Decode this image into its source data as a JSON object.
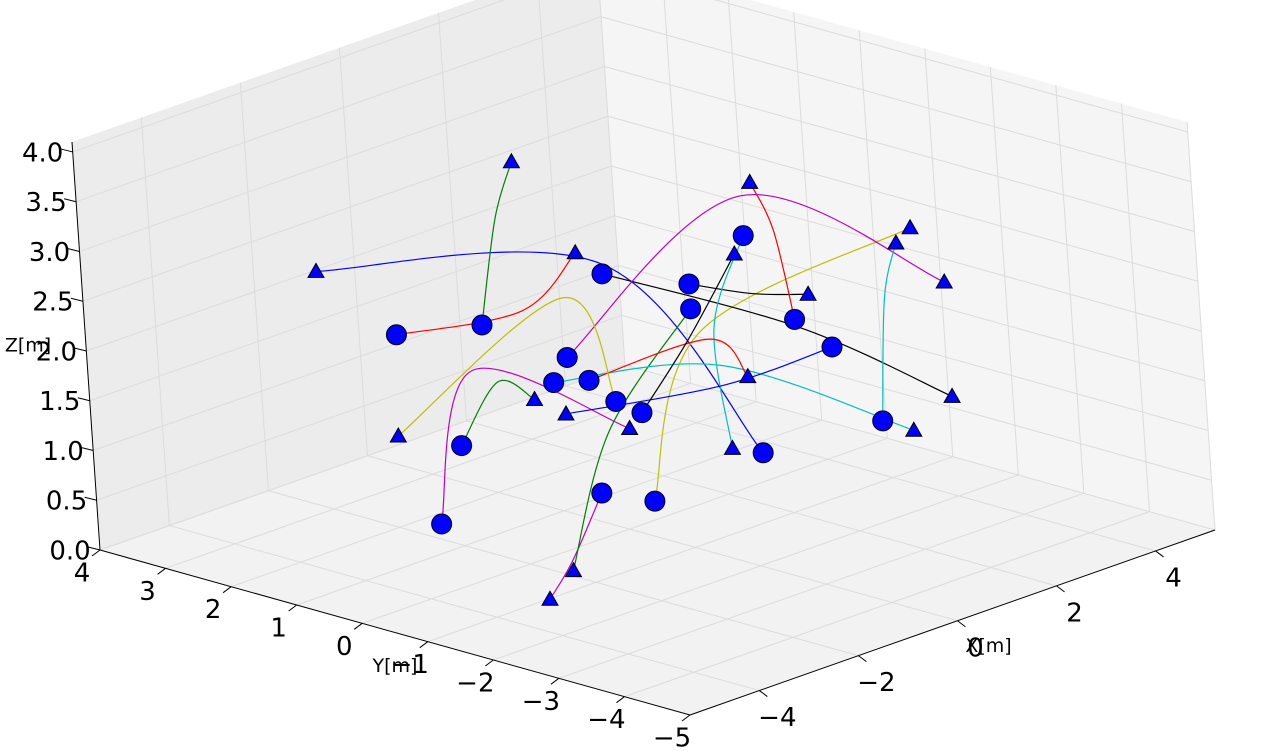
{
  "chart_data": {
    "type": "trajectory3d",
    "xlabel": "X[m]",
    "ylabel": "Y[m]",
    "zlabel": "Z[m]",
    "xlim": [
      -5.4,
      5.2
    ],
    "ylim": [
      -5,
      4
    ],
    "zlim": [
      0,
      4.1
    ],
    "xticks": [
      {
        "value": -4,
        "label": "−4"
      },
      {
        "value": -2,
        "label": "−2"
      },
      0,
      2,
      4
    ],
    "yticks": [
      {
        "value": -5,
        "label": "−5"
      },
      {
        "value": -4,
        "label": "−4"
      },
      {
        "value": -3,
        "label": "−3"
      },
      {
        "value": -2,
        "label": "−2"
      },
      {
        "value": -1,
        "label": "−1"
      },
      0,
      1,
      2,
      3,
      4
    ],
    "zticks": [
      {
        "value": 0,
        "label": "0.0"
      },
      0.5,
      {
        "value": 1,
        "label": "1.0"
      },
      1.5,
      {
        "value": 2,
        "label": "2.0"
      },
      2.5,
      {
        "value": 3,
        "label": "3.0"
      },
      3.5,
      {
        "value": 4,
        "label": "4.0"
      }
    ],
    "grid": true,
    "start_marker": "circle",
    "end_marker": "triangle",
    "marker_color": "#0000ff",
    "series": [
      {
        "color": "#0000ff",
        "x": [
          0.2,
          -0.2,
          -3.3
        ],
        "y": [
          -2,
          0,
          2
        ],
        "z": [
          1.1,
          2.7,
          2.8
        ]
      },
      {
        "color": "#ff0000",
        "x": [
          -1.8,
          0.7,
          -0.7
        ],
        "y": [
          2,
          2,
          0
        ],
        "z": [
          1.9,
          1.7,
          2.9
        ]
      },
      {
        "color": "#008000",
        "x": [
          -0.1,
          0.3,
          0.7
        ],
        "y": [
          2,
          2,
          2
        ],
        "z": [
          1.7,
          2.7,
          3.2
        ]
      },
      {
        "color": "#bf00bf",
        "x": [
          -3.7,
          -2.9,
          -2.4
        ],
        "y": [
          0,
          0,
          -2
        ],
        "z": [
          0.7,
          2.1,
          1.8
        ]
      },
      {
        "color": "#bf00bf",
        "x": [
          -0.5,
          -3.7,
          -4.2
        ],
        "y": [
          0,
          -2,
          -2
        ],
        "z": [
          0.45,
          0.7,
          0.4
        ]
      },
      {
        "color": "#008000",
        "x": [
          1.5,
          -2.8,
          -3.7
        ],
        "y": [
          0,
          -2,
          -2
        ],
        "z": [
          1.95,
          1.85,
          0.6
        ]
      },
      {
        "color": "#bfbf00",
        "x": [
          -2.0,
          -0.9,
          3.4
        ],
        "y": [
          -2,
          -2,
          -2
        ],
        "z": [
          1.0,
          2.5,
          2.8
        ]
      },
      {
        "color": "#000000",
        "x": [
          -0.2,
          1.1,
          4.0
        ],
        "y": [
          0,
          -2,
          -2
        ],
        "z": [
          2.6,
          2.2,
          1.0
        ]
      },
      {
        "color": "#000000",
        "x": [
          1.5,
          0.2,
          1.3
        ],
        "y": [
          0,
          -2,
          -2
        ],
        "z": [
          2.2,
          2.7,
          2.5
        ]
      },
      {
        "color": "#ff0000",
        "x": [
          1.0,
          0.7,
          0.3
        ],
        "y": [
          -2,
          -2,
          -2
        ],
        "z": [
          2.3,
          3.25,
          3.8
        ]
      },
      {
        "color": "#bf00bf",
        "x": [
          -1.0,
          0.1,
          4.0
        ],
        "y": [
          0,
          -2,
          -2
        ],
        "z": [
          1.9,
          3.7,
          2.15
        ]
      },
      {
        "color": "#00bfbf",
        "x": [
          -1.3,
          -0.5,
          3.2
        ],
        "y": [
          0,
          -2,
          -2
        ],
        "z": [
          1.7,
          2.1,
          0.8
        ]
      },
      {
        "color": "#00bfbf",
        "x": [
          2.6,
          2.8,
          3.1
        ],
        "y": [
          -2,
          -2,
          -2
        ],
        "z": [
          1.0,
          2.2,
          2.7
        ]
      },
      {
        "color": "#00bfbf",
        "x": [
          0.1,
          -0.6,
          -0.4
        ],
        "y": [
          -2,
          -2,
          -2
        ],
        "z": [
          3.3,
          2.5,
          1.25
        ]
      },
      {
        "color": "#ff0000",
        "x": [
          -0.6,
          -0.7,
          0.0
        ],
        "y": [
          0,
          -2,
          -2
        ],
        "z": [
          1.6,
          2.4,
          1.9
        ]
      },
      {
        "color": "#0000ff",
        "x": [
          1.7,
          -0.5,
          -1.1
        ],
        "y": [
          -2,
          -2,
          0
        ],
        "z": [
          1.9,
          1.9,
          1.35
        ]
      },
      {
        "color": "#000000",
        "x": [
          0.4,
          1.4,
          -0.1
        ],
        "y": [
          0,
          0,
          -2
        ],
        "z": [
          1.1,
          1.65,
          3.15
        ]
      },
      {
        "color": "#bfbf00",
        "x": [
          -0.1,
          -1.0,
          -1.9
        ],
        "y": [
          0,
          0,
          2
        ],
        "z": [
          1.3,
          2.5,
          0.9
        ]
      },
      {
        "color": "#008000",
        "x": [
          -3.2,
          -2.4,
          -1.7
        ],
        "y": [
          0,
          0,
          0
        ],
        "z": [
          1.4,
          1.9,
          1.6
        ]
      }
    ]
  }
}
